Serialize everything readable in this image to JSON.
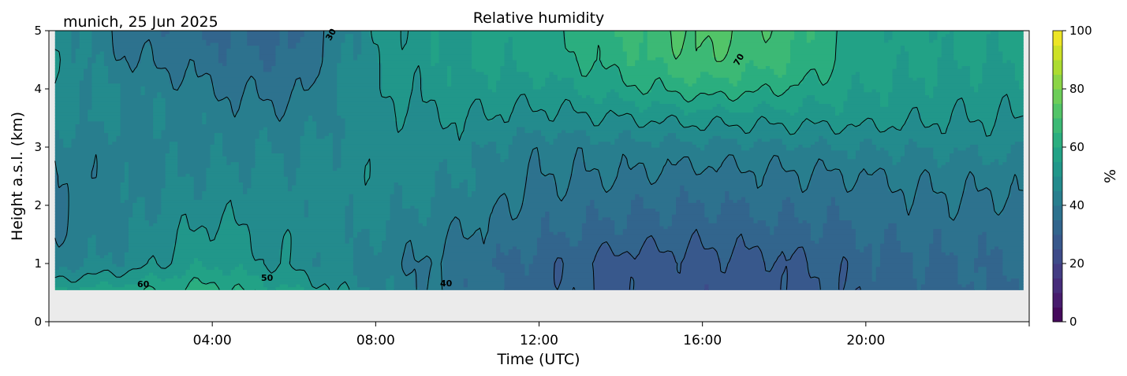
{
  "chart_data": {
    "type": "heatmap",
    "title": "Relative humidity",
    "subtitle": "munich, 25 Jun 2025",
    "xlabel": "Time (UTC)",
    "ylabel": "Height a.s.l. (km)",
    "xlim": [
      0,
      24
    ],
    "ylim": [
      0,
      5
    ],
    "data_extent": {
      "t": [
        0.15,
        23.85
      ],
      "h": [
        0.55,
        5
      ]
    },
    "x_ticks": [
      {
        "v": 0,
        "label": ""
      },
      {
        "v": 4,
        "label": "04:00"
      },
      {
        "v": 8,
        "label": "08:00"
      },
      {
        "v": 12,
        "label": "12:00"
      },
      {
        "v": 16,
        "label": "16:00"
      },
      {
        "v": 20,
        "label": "20:00"
      },
      {
        "v": 24,
        "label": ""
      }
    ],
    "y_ticks": [
      "0",
      "1",
      "2",
      "3",
      "4",
      "5"
    ],
    "colorbar": {
      "label": "%",
      "range": [
        0,
        100
      ],
      "ticks": [
        "0",
        "20",
        "40",
        "60",
        "80",
        "100"
      ],
      "colormap": "viridis",
      "step": 5
    },
    "contour_levels": [
      30,
      40,
      50,
      60,
      70
    ],
    "contour_labels": [
      "60",
      "50",
      "40",
      "30",
      "70"
    ],
    "times": [
      0,
      2,
      4,
      6,
      8,
      10,
      12,
      14,
      16,
      18,
      20,
      22,
      24
    ],
    "heights": [
      0.55,
      1,
      1.5,
      2,
      2.5,
      3,
      3.5,
      4,
      4.5,
      5
    ],
    "rh": [
      [
        55,
        58,
        62,
        55,
        45,
        38,
        33,
        28,
        27,
        28,
        32,
        34,
        34
      ],
      [
        42,
        47,
        55,
        48,
        43,
        37,
        33,
        27,
        28,
        29,
        33,
        35,
        35
      ],
      [
        40,
        45,
        52,
        48,
        45,
        40,
        36,
        33,
        32,
        33,
        35,
        37,
        37
      ],
      [
        40,
        44,
        48,
        47,
        47,
        43,
        38,
        36,
        35,
        36,
        37,
        39,
        39
      ],
      [
        40,
        43,
        46,
        46,
        48,
        45,
        40,
        40,
        38,
        39,
        40,
        42,
        42
      ],
      [
        43,
        43,
        44,
        45,
        48,
        47,
        42,
        43,
        43,
        44,
        45,
        46,
        46
      ],
      [
        47,
        45,
        43,
        42,
        48,
        50,
        48,
        50,
        52,
        52,
        52,
        50,
        50
      ],
      [
        47,
        45,
        40,
        38,
        50,
        53,
        53,
        58,
        63,
        60,
        55,
        53,
        53
      ],
      [
        50,
        40,
        37,
        35,
        50,
        55,
        57,
        63,
        70,
        66,
        57,
        55,
        55
      ],
      [
        50,
        38,
        35,
        33,
        50,
        55,
        58,
        65,
        72,
        68,
        57,
        56,
        56
      ]
    ],
    "missing_color": "#ebebeb"
  }
}
